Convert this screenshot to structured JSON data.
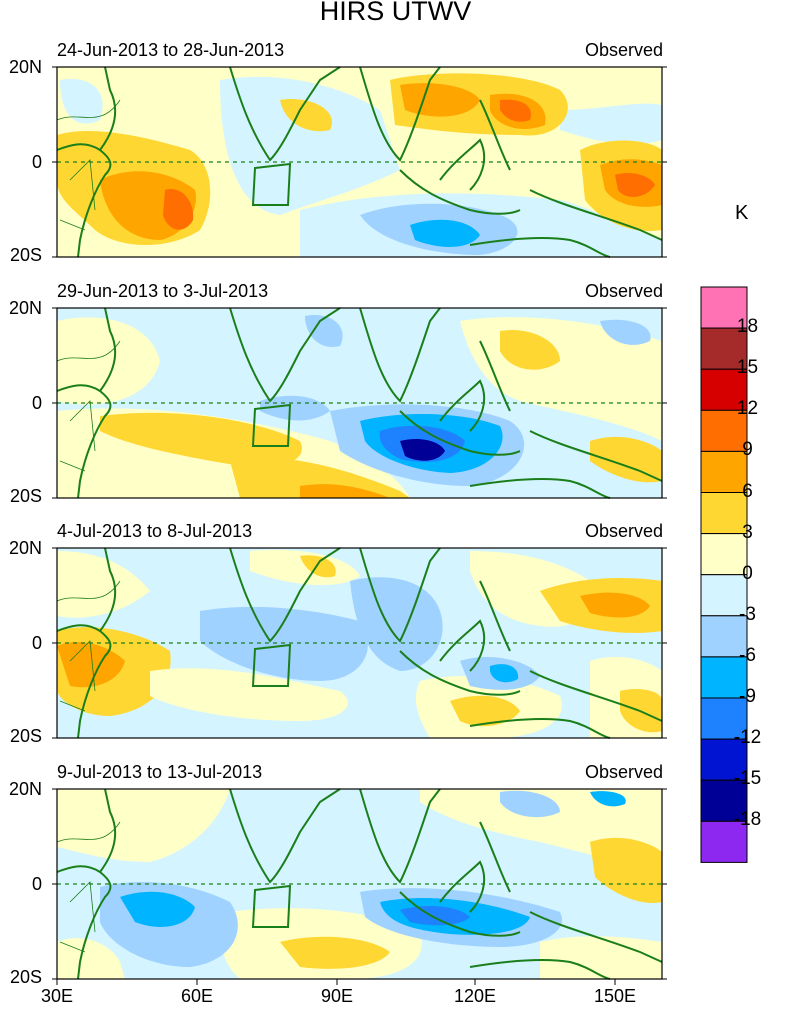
{
  "title": "HIRS UTWV",
  "units": "K",
  "panels": [
    {
      "date_range": "24-Jun-2013 to 28-Jun-2013",
      "label": "Observed"
    },
    {
      "date_range": "29-Jun-2013 to 3-Jul-2013",
      "label": "Observed"
    },
    {
      "date_range": "4-Jul-2013 to 8-Jul-2013",
      "label": "Observed"
    },
    {
      "date_range": "9-Jul-2013 to 13-Jul-2013",
      "label": "Observed"
    }
  ],
  "lat_labels": [
    "20N",
    "0",
    "20S"
  ],
  "lon_labels": [
    "30E",
    "60E",
    "90E",
    "120E",
    "150E"
  ],
  "colorbar": {
    "labels": [
      "18",
      "15",
      "12",
      "9",
      "6",
      "3",
      "0",
      "-3",
      "-6",
      "-9",
      "-12",
      "-15",
      "-18"
    ],
    "colors": [
      "#ff73b4",
      "#a52a2a",
      "#d70000",
      "#ff6e00",
      "#ffa500",
      "#ffd733",
      "#ffffc8",
      "#d4f4ff",
      "#a0d2ff",
      "#00b4ff",
      "#1e82ff",
      "#0014d2",
      "#000096",
      "#8c28f0"
    ]
  },
  "palette": {
    "coast": "#1a7f1a",
    "land_bg": "#ffffc8"
  }
}
